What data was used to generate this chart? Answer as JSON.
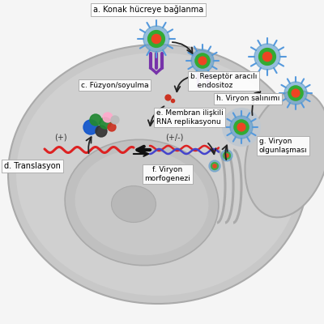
{
  "labels": {
    "a": "a. Konak hücreye bağlanma",
    "b": "b. Reseptör aracılı\n   endositoz",
    "c": "c. Füzyon/soyulma",
    "d": "d. Translasyon",
    "e": "e. Membran ilişkili\nRNA replikasyonu",
    "f": "f. Viryon\nmorfogenezi",
    "g": "g. Viryon\nolgunlaşması",
    "h": "h. Viryon salınımı"
  },
  "label_fontsize": 6.5,
  "virion_spike_color": "#5599dd",
  "virion_outer_color": "#5599cc",
  "virion_mid_color": "#33aa33",
  "virion_core_color": "#ee4422",
  "rna_plus_color": "#dd2222",
  "rna_minus_color": "#4444cc",
  "arrow_color": "#222222",
  "box_facecolor": "#ffffff",
  "box_edgecolor": "#aaaaaa",
  "receptor_color": "#7733aa",
  "cell_color": "#c8c8c8",
  "cell_inner_color": "#d8d8d8",
  "nucleus_color": "#cccccc",
  "nucleus_inner_color": "#d8d8d8",
  "bg_color": "#f5f5f5"
}
